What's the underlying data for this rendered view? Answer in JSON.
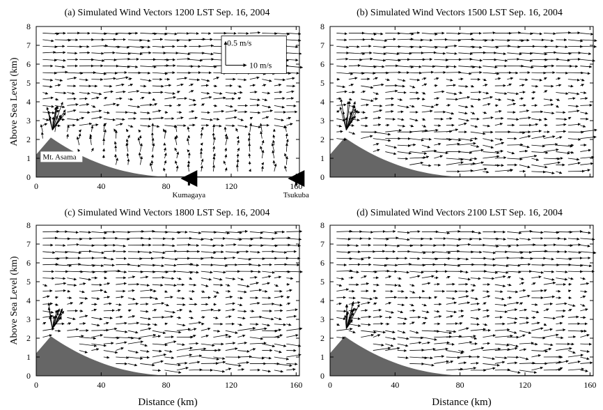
{
  "chart_data": [
    {
      "type": "vector-field",
      "title": "(a)  Simulated Wind Vectors  1200 LST Sep. 16, 2004",
      "ylabel": "Above Sea Level (km)",
      "xlabel": "",
      "xlim": [
        0,
        162
      ],
      "ylim": [
        0,
        8
      ],
      "x_ticks": [
        "0",
        "40",
        "80",
        "120",
        "160"
      ],
      "y_ticks": [
        "0",
        "1",
        "2",
        "3",
        "4",
        "5",
        "6",
        "7",
        "8"
      ],
      "legend": {
        "vertical": "0.5 m/s",
        "horizontal": "10  m/s"
      },
      "annotations": [
        {
          "text": "Mt. Asama",
          "x": 4,
          "y": 0.95
        },
        {
          "text": "Kumagaya",
          "marker_x": 94
        },
        {
          "text": "Tsukuba",
          "marker_x": 160
        }
      ],
      "terrain": {
        "peak_x": 9,
        "peak_y": 2.1,
        "base_y": 1.2
      }
    },
    {
      "type": "vector-field",
      "title": "(b)  Simulated Wind Vectors  1500 LST Sep. 16, 2004",
      "ylabel": "",
      "xlabel": "",
      "xlim": [
        0,
        162
      ],
      "ylim": [
        0,
        8
      ],
      "x_ticks": [],
      "y_ticks": [
        "0",
        "1",
        "2",
        "3",
        "4",
        "5",
        "6",
        "7",
        "8"
      ],
      "terrain": {
        "peak_x": 9,
        "peak_y": 2.1,
        "base_y": 1.2
      }
    },
    {
      "type": "vector-field",
      "title": "(c)  Simulated Wind Vectors  1800 LST Sep. 16, 2004",
      "ylabel": "Above Sea Level (km)",
      "xlabel": "Distance (km)",
      "xlim": [
        0,
        162
      ],
      "ylim": [
        0,
        8
      ],
      "x_ticks": [
        "0",
        "40",
        "80",
        "120",
        "160"
      ],
      "y_ticks": [
        "0",
        "1",
        "2",
        "3",
        "4",
        "5",
        "6",
        "7",
        "8"
      ],
      "terrain": {
        "peak_x": 9,
        "peak_y": 2.1,
        "base_y": 1.2
      }
    },
    {
      "type": "vector-field",
      "title": "(d)  Simulated Wind Vectors  2100 LST Sep. 16, 2004",
      "ylabel": "",
      "xlabel": "Distance (km)",
      "xlim": [
        0,
        162
      ],
      "ylim": [
        0,
        8
      ],
      "x_ticks": [
        "0",
        "40",
        "80",
        "120",
        "160"
      ],
      "y_ticks": [
        "0",
        "1",
        "2",
        "3",
        "4",
        "5",
        "6",
        "7",
        "8"
      ],
      "terrain": {
        "peak_x": 9,
        "peak_y": 2.1,
        "base_y": 1.2
      }
    }
  ],
  "colors": {
    "terrain": "#666666",
    "axis": "#000000",
    "vector": "#000000"
  }
}
